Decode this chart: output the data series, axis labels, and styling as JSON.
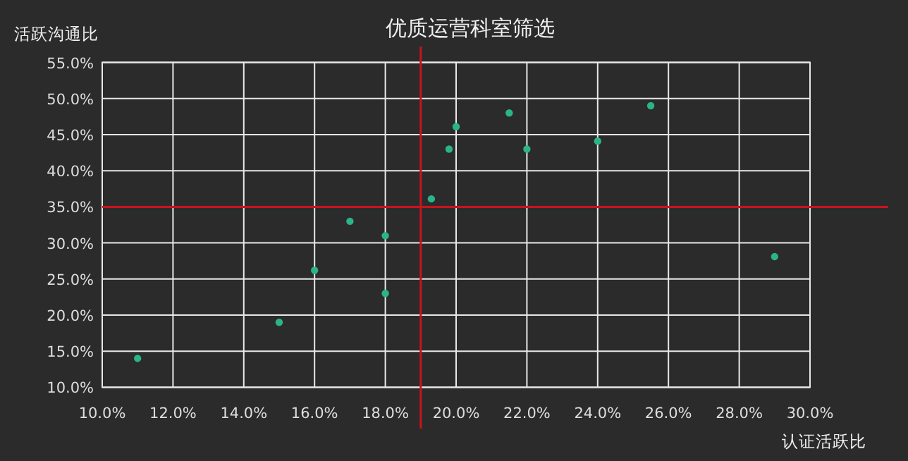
{
  "chart_data": {
    "type": "scatter",
    "title": "优质运营科室筛选",
    "xlabel": "认证活跃比",
    "ylabel": "活跃沟通比",
    "x": [
      11.0,
      15.0,
      16.0,
      17.0,
      18.0,
      18.0,
      19.3,
      19.8,
      20.0,
      21.5,
      22.0,
      24.0,
      25.5,
      29.0
    ],
    "series": [
      {
        "color": "#2bb38a",
        "values": [
          14.0,
          19.0,
          26.2,
          33.0,
          31.0,
          23.0,
          36.1,
          43.0,
          46.1,
          48.0,
          43.0,
          44.1,
          49.0,
          28.1
        ]
      }
    ],
    "marker": "circle",
    "grid": true,
    "xlim": [
      10,
      30
    ],
    "ylim": [
      10,
      55
    ],
    "xticks": [
      {
        "value": 10,
        "label": "10.0%"
      },
      {
        "value": 12,
        "label": "12.0%"
      },
      {
        "value": 14,
        "label": "14.0%"
      },
      {
        "value": 16,
        "label": "16.0%"
      },
      {
        "value": 18,
        "label": "18.0%"
      },
      {
        "value": 20,
        "label": "20.0%"
      },
      {
        "value": 22,
        "label": "22.0%"
      },
      {
        "value": 24,
        "label": "24.0%"
      },
      {
        "value": 26,
        "label": "26.0%"
      },
      {
        "value": 28,
        "label": "28.0%"
      },
      {
        "value": 30,
        "label": "30.0%"
      }
    ],
    "yticks": [
      {
        "value": 10,
        "label": "10.0%"
      },
      {
        "value": 15,
        "label": "15.0%"
      },
      {
        "value": 20,
        "label": "20.0%"
      },
      {
        "value": 25,
        "label": "25.0%"
      },
      {
        "value": 30,
        "label": "30.0%"
      },
      {
        "value": 35,
        "label": "35.0%"
      },
      {
        "value": 40,
        "label": "40.0%"
      },
      {
        "value": 45,
        "label": "45.0%"
      },
      {
        "value": 50,
        "label": "50.0%"
      },
      {
        "value": 55,
        "label": "55.0%"
      }
    ],
    "ref_lines": [
      {
        "axis": "x",
        "value": 19.0,
        "color": "#c8141e"
      },
      {
        "axis": "y",
        "value": 35.0,
        "color": "#c8141e"
      }
    ]
  }
}
